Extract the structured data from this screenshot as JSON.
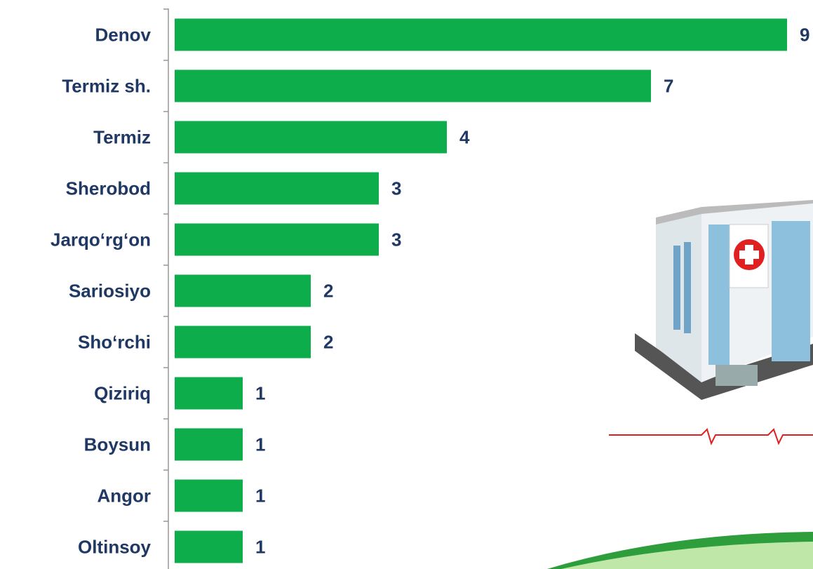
{
  "chart_data": {
    "type": "barh",
    "categories": [
      "Denov",
      "Termiz sh.",
      "Termiz",
      "Sherobod",
      "Jarqo‘rg‘on",
      "Sariosiyo",
      "Sho‘rchi",
      "Qiziriq",
      "Boysun",
      "Angor",
      "Oltinsoy"
    ],
    "values": [
      9,
      7,
      4,
      3,
      3,
      2,
      2,
      1,
      1,
      1,
      1
    ],
    "color": "#0ead4b",
    "xlim": [
      0,
      9
    ]
  }
}
